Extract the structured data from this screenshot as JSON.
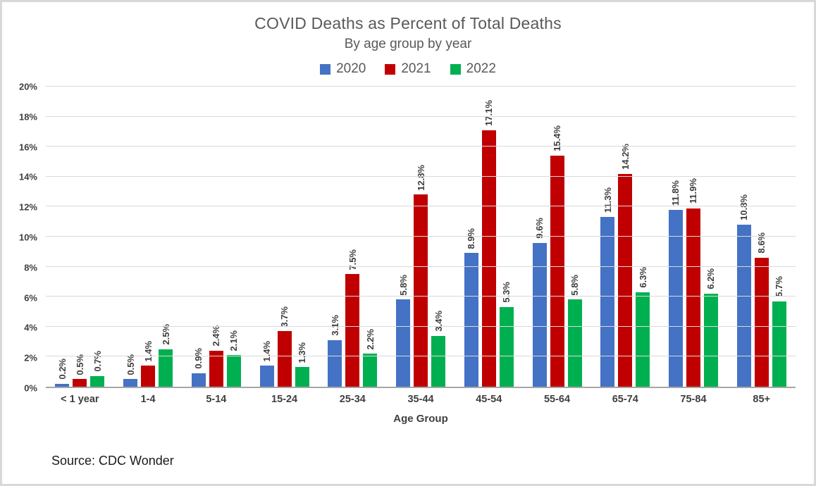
{
  "chart_data": {
    "type": "bar",
    "title": "COVID Deaths as Percent of Total Deaths",
    "subtitle": "By age group by year",
    "xlabel": "Age Group",
    "ylabel": "",
    "ylim": [
      0,
      20
    ],
    "ytick_step": 2,
    "ytick_suffix": "%",
    "grid": true,
    "legend_position": "top",
    "data_label_suffix": "%",
    "data_labels_rotated": true,
    "categories": [
      "< 1 year",
      "1-4",
      "5-14",
      "15-24",
      "25-34",
      "35-44",
      "45-54",
      "55-64",
      "65-74",
      "75-84",
      "85+"
    ],
    "series": [
      {
        "name": "2020",
        "color": "#4472C4",
        "values": [
          0.2,
          0.5,
          0.9,
          1.4,
          3.1,
          5.8,
          8.9,
          9.6,
          11.3,
          11.8,
          10.8
        ]
      },
      {
        "name": "2021",
        "color": "#C00000",
        "values": [
          0.5,
          1.4,
          2.4,
          3.7,
          7.5,
          12.8,
          17.1,
          15.4,
          14.2,
          11.9,
          8.6
        ]
      },
      {
        "name": "2022",
        "color": "#00B050",
        "values": [
          0.7,
          2.5,
          2.1,
          1.3,
          2.2,
          3.4,
          5.3,
          5.8,
          6.3,
          6.2,
          5.7
        ]
      }
    ]
  },
  "footer": {
    "source": "Source: CDC Wonder"
  },
  "style_colors": {
    "title_text": "#595959",
    "axis_label_text": "#3f3f3f",
    "gridline": "#d9d9d9",
    "axis_line": "#a6a6a6",
    "frame_border": "#d8d8d8"
  }
}
